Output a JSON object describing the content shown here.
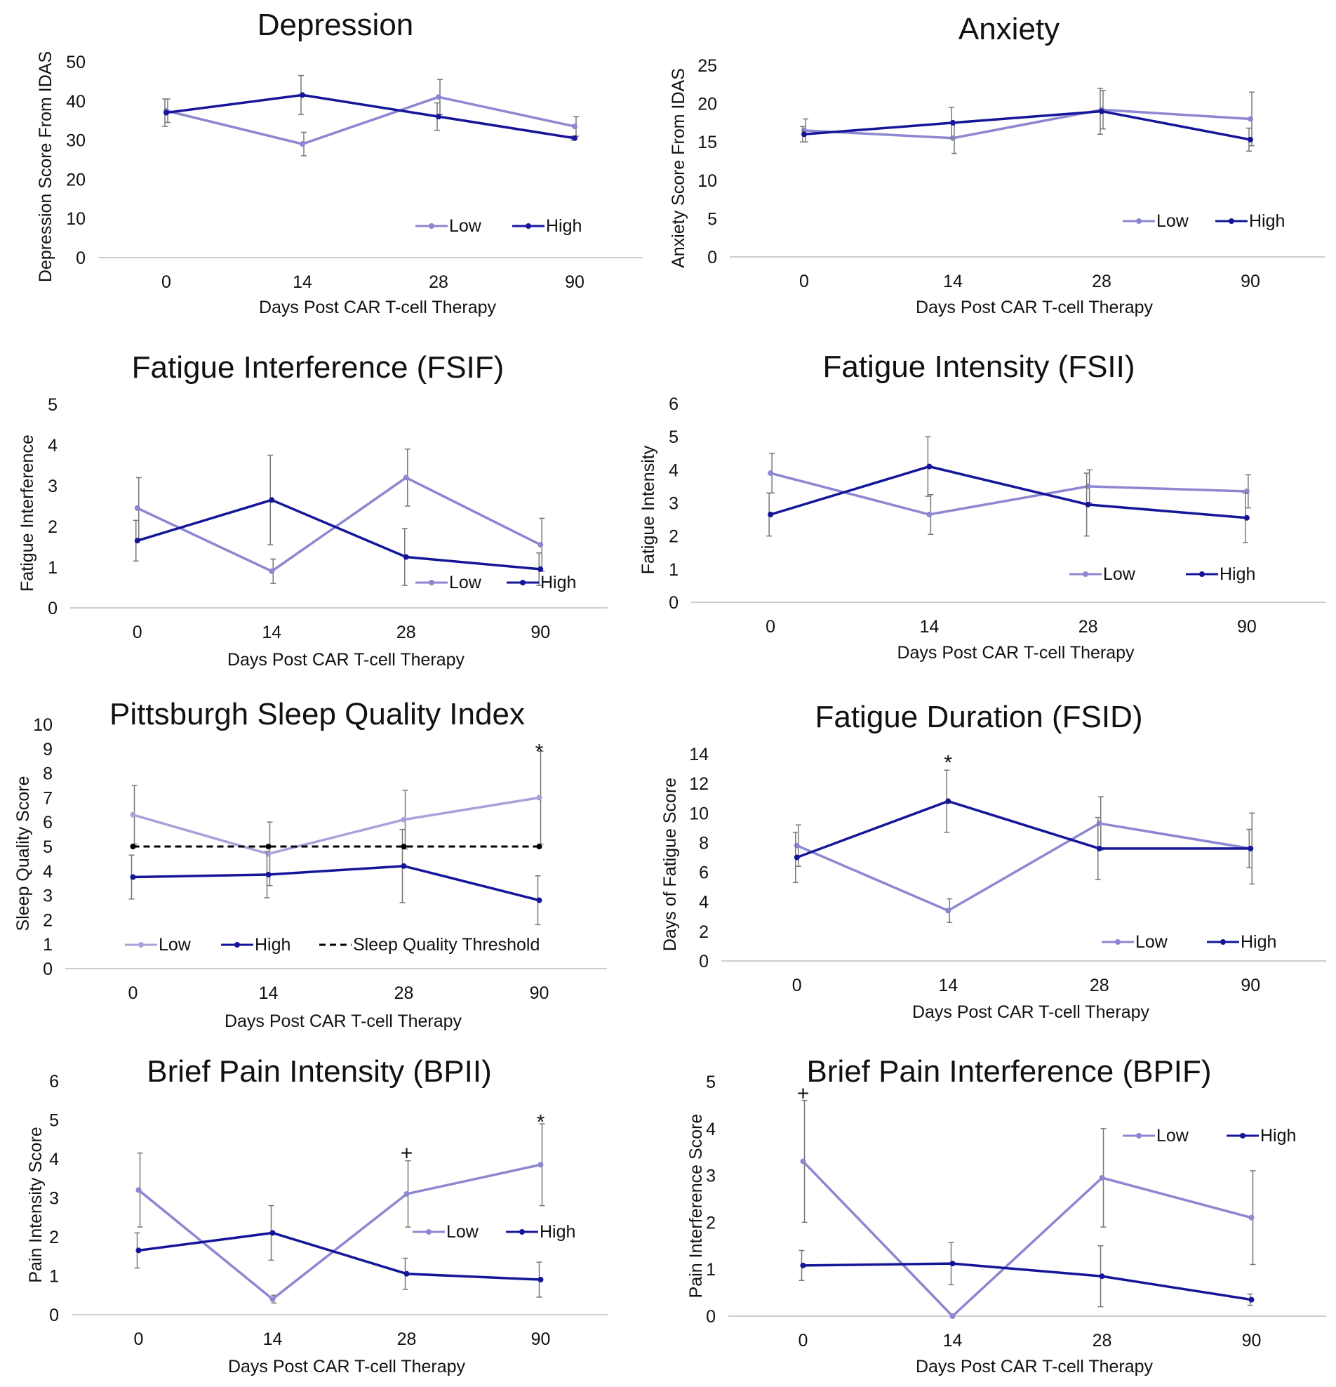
{
  "colors": {
    "low": "#8c87d0",
    "high": "#15159a",
    "low_sleep": "#a7a3da",
    "threshold": "#000000",
    "axis": "#bdbdbd",
    "error": "#777777"
  },
  "chart_data": [
    {
      "id": "depression",
      "type": "line",
      "title": "Depression",
      "xlabel": "Days Post CAR T-cell Therapy",
      "ylabel": "Depression Score From IDAS",
      "categories": [
        "0",
        "14",
        "28",
        "90"
      ],
      "yticks": [
        "0",
        "10",
        "20",
        "30",
        "40",
        "50"
      ],
      "ylim": [
        0,
        50
      ],
      "legend": "bottom-right",
      "series": [
        {
          "name": "Low",
          "color": "low",
          "values": [
            37.5,
            29,
            41,
            33.5
          ],
          "err": [
            3,
            3,
            4.5,
            2.5
          ]
        },
        {
          "name": "High",
          "color": "high",
          "values": [
            37,
            41.5,
            36,
            30.5
          ],
          "err": [
            3.5,
            5,
            3.5,
            0.5
          ]
        }
      ],
      "annotations": []
    },
    {
      "id": "anxiety",
      "type": "line",
      "title": "Anxiety",
      "xlabel": "Days Post CAR T-cell Therapy",
      "ylabel": "Anxiety  Score From IDAS",
      "categories": [
        "0",
        "14",
        "28",
        "90"
      ],
      "yticks": [
        "0",
        "5",
        "10",
        "15",
        "20",
        "25"
      ],
      "ylim": [
        0,
        25
      ],
      "legend": "bottom-right",
      "series": [
        {
          "name": "Low",
          "color": "low",
          "values": [
            16.5,
            15.5,
            19.2,
            18
          ],
          "err": [
            1.5,
            2,
            2.5,
            3.5
          ]
        },
        {
          "name": "High",
          "color": "high",
          "values": [
            16,
            17.5,
            19,
            15.3
          ],
          "err": [
            1,
            2,
            3,
            1.5
          ]
        }
      ],
      "annotations": []
    },
    {
      "id": "fsif",
      "type": "line",
      "title": "Fatigue Interference (FSIF)",
      "xlabel": "Days Post CAR T-cell Therapy",
      "ylabel": "Fatigue Interference",
      "categories": [
        "0",
        "14",
        "28",
        "90"
      ],
      "yticks": [
        "0",
        "1",
        "2",
        "3",
        "4",
        "5"
      ],
      "ylim": [
        0,
        5
      ],
      "legend": "bottom-right",
      "series": [
        {
          "name": "Low",
          "color": "low",
          "values": [
            2.45,
            0.9,
            3.2,
            1.55
          ],
          "err": [
            0.75,
            0.3,
            0.7,
            0.65
          ]
        },
        {
          "name": "High",
          "color": "high",
          "values": [
            1.65,
            2.65,
            1.25,
            0.95
          ],
          "err": [
            0.5,
            1.1,
            0.7,
            0.4
          ]
        }
      ],
      "annotations": []
    },
    {
      "id": "fsii",
      "type": "line",
      "title": "Fatigue Intensity (FSII)",
      "xlabel": "Days Post CAR T-cell Therapy",
      "ylabel": "Fatigue Intensity",
      "categories": [
        "0",
        "14",
        "28",
        "90"
      ],
      "yticks": [
        "0",
        "1",
        "2",
        "3",
        "4",
        "5",
        "6"
      ],
      "ylim": [
        0,
        6
      ],
      "legend": "bottom-right",
      "series": [
        {
          "name": "Low",
          "color": "low",
          "values": [
            3.9,
            2.65,
            3.5,
            3.35
          ],
          "err": [
            0.6,
            0.6,
            0.5,
            0.5
          ]
        },
        {
          "name": "High",
          "color": "high",
          "values": [
            2.65,
            4.1,
            2.95,
            2.55
          ],
          "err": [
            0.65,
            0.9,
            0.95,
            0.75
          ]
        }
      ],
      "annotations": []
    },
    {
      "id": "psqi",
      "type": "line",
      "title": "Pittsburgh Sleep Quality Index",
      "xlabel": "Days Post CAR T-cell Therapy",
      "ylabel": "Sleep Quality Score",
      "categories": [
        "0",
        "14",
        "28",
        "90"
      ],
      "yticks": [
        "0",
        "1",
        "2",
        "3",
        "4",
        "5",
        "6",
        "7",
        "8",
        "9",
        "10"
      ],
      "ylim": [
        0,
        10
      ],
      "legend": "bottom",
      "series": [
        {
          "name": "Low",
          "color": "low_sleep",
          "values": [
            6.3,
            4.7,
            6.1,
            7
          ],
          "err": [
            1.2,
            1.3,
            1.2,
            1.9
          ]
        },
        {
          "name": "High",
          "color": "high",
          "values": [
            3.75,
            3.85,
            4.2,
            2.8
          ],
          "err": [
            0.9,
            0.95,
            1.5,
            1
          ]
        },
        {
          "name": "Sleep Quality Threshold",
          "color": "threshold",
          "dashed": true,
          "values": [
            5,
            5,
            5,
            5
          ],
          "err": [
            0,
            0,
            0,
            0
          ]
        }
      ],
      "annotations": [
        {
          "text": "*",
          "x": "90",
          "y": 8.9
        }
      ]
    },
    {
      "id": "fsid",
      "type": "line",
      "title": "Fatigue Duration (FSID)",
      "xlabel": "Days Post CAR T-cell Therapy",
      "ylabel": "Days of Fatigue Score",
      "categories": [
        "0",
        "14",
        "28",
        "90"
      ],
      "yticks": [
        "0",
        "2",
        "4",
        "6",
        "8",
        "10",
        "12",
        "14"
      ],
      "ylim": [
        0,
        14
      ],
      "legend": "bottom-right",
      "series": [
        {
          "name": "Low",
          "color": "low",
          "values": [
            7.8,
            3.4,
            9.3,
            7.6
          ],
          "err": [
            1.4,
            0.8,
            1.8,
            2.4
          ]
        },
        {
          "name": "High",
          "color": "high",
          "values": [
            7,
            10.8,
            7.6,
            7.6
          ],
          "err": [
            1.7,
            2.1,
            2.1,
            1.3
          ]
        }
      ],
      "annotations": [
        {
          "text": "*",
          "x": "14",
          "y": 13.4
        }
      ]
    },
    {
      "id": "bpii",
      "type": "line",
      "title": "Brief Pain Intensity (BPII)",
      "xlabel": "Days Post CAR T-cell Therapy",
      "ylabel": "Pain Intensity Score",
      "categories": [
        "0",
        "14",
        "28",
        "90"
      ],
      "yticks": [
        "0",
        "1",
        "2",
        "3",
        "4",
        "5",
        "6"
      ],
      "ylim": [
        0,
        6
      ],
      "legend": "bottom-right",
      "series": [
        {
          "name": "Low",
          "color": "low",
          "values": [
            3.2,
            0.4,
            3.1,
            3.85
          ],
          "err": [
            0.95,
            0.1,
            0.85,
            1.05
          ]
        },
        {
          "name": "High",
          "color": "high",
          "values": [
            1.65,
            2.1,
            1.05,
            0.9
          ],
          "err": [
            0.45,
            0.7,
            0.4,
            0.45
          ]
        }
      ],
      "annotations": [
        {
          "text": "+",
          "x": "28",
          "y": 4.15
        },
        {
          "text": "*",
          "x": "90",
          "y": 4.95
        }
      ]
    },
    {
      "id": "bpif",
      "type": "line",
      "title": "Brief Pain Interference (BPIF)",
      "xlabel": "Days Post CAR T-cell Therapy",
      "ylabel": "Pain Interference Score",
      "categories": [
        "0",
        "14",
        "28",
        "90"
      ],
      "yticks": [
        "0",
        "1",
        "2",
        "3",
        "4",
        "5"
      ],
      "ylim": [
        0,
        5
      ],
      "legend": "top-right",
      "series": [
        {
          "name": "Low",
          "color": "low",
          "values": [
            3.3,
            0,
            2.95,
            2.1
          ],
          "err": [
            1.3,
            0,
            1.05,
            1
          ]
        },
        {
          "name": "High",
          "color": "high",
          "values": [
            1.08,
            1.12,
            0.85,
            0.35
          ],
          "err": [
            0.32,
            0.45,
            0.65,
            0.12
          ]
        }
      ],
      "annotations": [
        {
          "text": "+",
          "x": "0",
          "y": 4.75
        }
      ]
    }
  ]
}
